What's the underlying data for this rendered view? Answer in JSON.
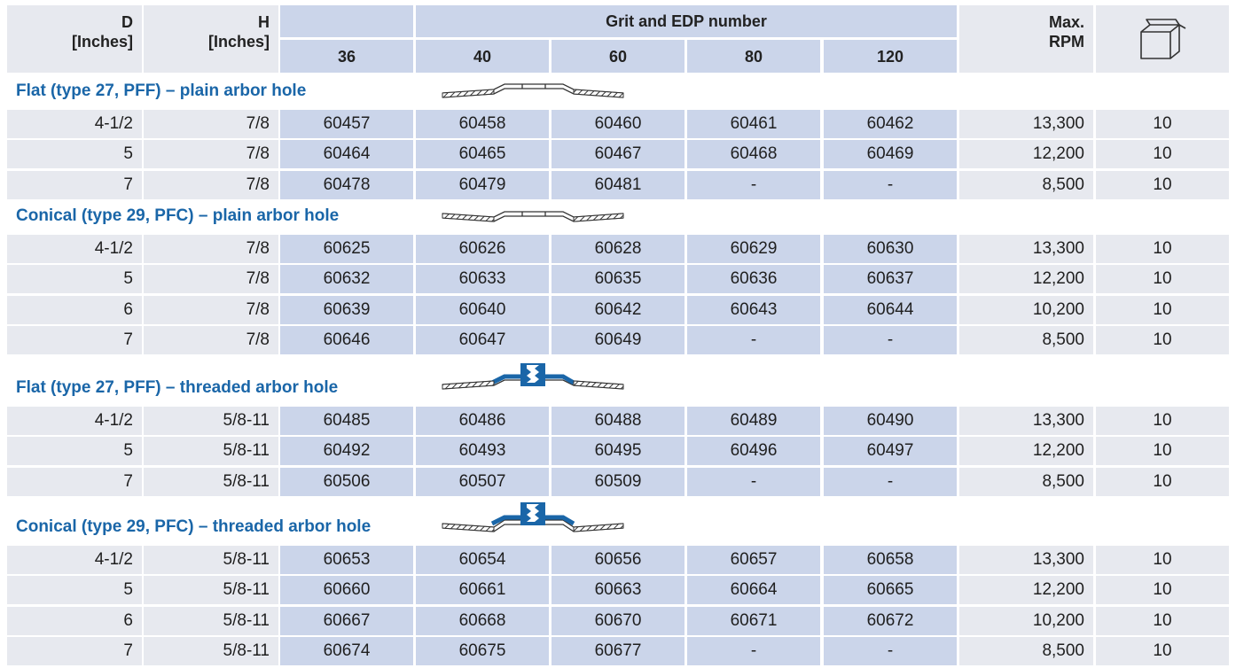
{
  "header": {
    "d_label": "D",
    "d_unit": "[Inches]",
    "h_label": "H",
    "h_unit": "[Inches]",
    "grit_title": "Grit and EDP number",
    "grits": [
      "36",
      "40",
      "60",
      "80",
      "120"
    ],
    "rpm_label": "Max.",
    "rpm_unit": "RPM",
    "box_icon": "package-box-icon"
  },
  "sections": [
    {
      "title": "Flat (type 27, PFF) – plain arbor hole",
      "icon": "flat-disc-plain-icon",
      "rows": [
        {
          "d": "4-1/2",
          "h": "7/8",
          "edp": [
            "60457",
            "60458",
            "60460",
            "60461",
            "60462"
          ],
          "rpm": "13,300",
          "qty": "10"
        },
        {
          "d": "5",
          "h": "7/8",
          "edp": [
            "60464",
            "60465",
            "60467",
            "60468",
            "60469"
          ],
          "rpm": "12,200",
          "qty": "10"
        },
        {
          "d": "7",
          "h": "7/8",
          "edp": [
            "60478",
            "60479",
            "60481",
            "-",
            "-"
          ],
          "rpm": "8,500",
          "qty": "10"
        }
      ]
    },
    {
      "title": "Conical (type 29, PFC) – plain arbor hole",
      "icon": "conical-disc-plain-icon",
      "rows": [
        {
          "d": "4-1/2",
          "h": "7/8",
          "edp": [
            "60625",
            "60626",
            "60628",
            "60629",
            "60630"
          ],
          "rpm": "13,300",
          "qty": "10"
        },
        {
          "d": "5",
          "h": "7/8",
          "edp": [
            "60632",
            "60633",
            "60635",
            "60636",
            "60637"
          ],
          "rpm": "12,200",
          "qty": "10"
        },
        {
          "d": "6",
          "h": "7/8",
          "edp": [
            "60639",
            "60640",
            "60642",
            "60643",
            "60644"
          ],
          "rpm": "10,200",
          "qty": "10"
        },
        {
          "d": "7",
          "h": "7/8",
          "edp": [
            "60646",
            "60647",
            "60649",
            "-",
            "-"
          ],
          "rpm": "8,500",
          "qty": "10"
        }
      ]
    },
    {
      "title": "Flat (type 27, PFF) – threaded arbor hole",
      "icon": "flat-disc-threaded-icon",
      "rows": [
        {
          "d": "4-1/2",
          "h": "5/8-11",
          "edp": [
            "60485",
            "60486",
            "60488",
            "60489",
            "60490"
          ],
          "rpm": "13,300",
          "qty": "10"
        },
        {
          "d": "5",
          "h": "5/8-11",
          "edp": [
            "60492",
            "60493",
            "60495",
            "60496",
            "60497"
          ],
          "rpm": "12,200",
          "qty": "10"
        },
        {
          "d": "7",
          "h": "5/8-11",
          "edp": [
            "60506",
            "60507",
            "60509",
            "-",
            "-"
          ],
          "rpm": "8,500",
          "qty": "10"
        }
      ]
    },
    {
      "title": "Conical (type 29, PFC) – threaded arbor hole",
      "icon": "conical-disc-threaded-icon",
      "rows": [
        {
          "d": "4-1/2",
          "h": "5/8-11",
          "edp": [
            "60653",
            "60654",
            "60656",
            "60657",
            "60658"
          ],
          "rpm": "13,300",
          "qty": "10"
        },
        {
          "d": "5",
          "h": "5/8-11",
          "edp": [
            "60660",
            "60661",
            "60663",
            "60664",
            "60665"
          ],
          "rpm": "12,200",
          "qty": "10"
        },
        {
          "d": "6",
          "h": "5/8-11",
          "edp": [
            "60667",
            "60668",
            "60670",
            "60671",
            "60672"
          ],
          "rpm": "10,200",
          "qty": "10"
        },
        {
          "d": "7",
          "h": "5/8-11",
          "edp": [
            "60674",
            "60675",
            "60677",
            "-",
            "-"
          ],
          "rpm": "8,500",
          "qty": "10"
        }
      ]
    }
  ]
}
